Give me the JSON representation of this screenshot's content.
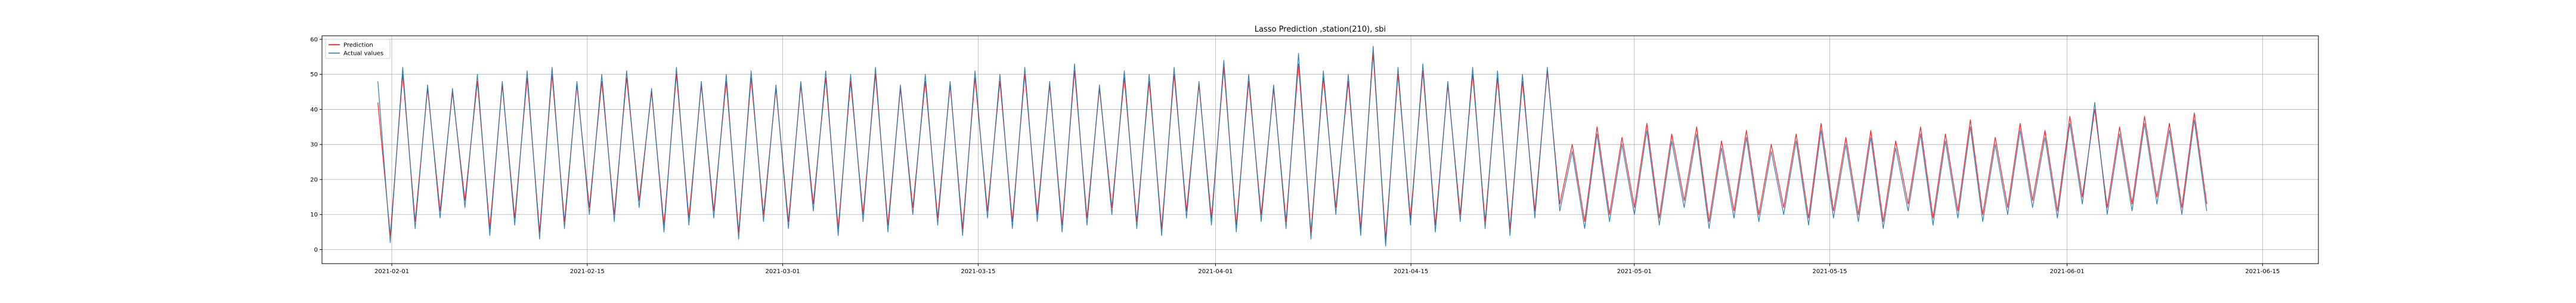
{
  "chart_data": {
    "type": "line",
    "title": "Lasso Prediction ,station(210), sbi",
    "xlabel": "",
    "ylabel": "",
    "xlim": [
      "2021-01-27",
      "2021-06-19"
    ],
    "ylim": [
      -4,
      61
    ],
    "x_ticks": [
      "2021-02-01",
      "2021-02-15",
      "2021-03-01",
      "2021-03-15",
      "2021-04-01",
      "2021-04-15",
      "2021-05-01",
      "2021-05-15",
      "2021-06-01",
      "2021-06-15"
    ],
    "y_ticks": [
      0,
      10,
      20,
      30,
      40,
      50,
      60
    ],
    "grid": true,
    "legend_position": "top-left",
    "x_start": "2021-01-31",
    "x_end": "2021-06-11",
    "series": [
      {
        "name": "Prediction",
        "color": "#ff0000",
        "values": [
          42,
          4,
          50,
          8,
          46,
          11,
          45,
          14,
          48,
          6,
          47,
          9,
          49,
          5,
          50,
          8,
          47,
          12,
          48,
          10,
          49,
          14,
          45,
          7,
          50,
          9,
          47,
          11,
          48,
          5,
          49,
          10,
          46,
          8,
          47,
          13,
          49,
          6,
          48,
          10,
          50,
          7,
          46,
          12,
          48,
          9,
          47,
          6,
          49,
          11,
          48,
          8,
          50,
          10,
          47,
          7,
          51,
          9,
          46,
          12,
          49,
          8,
          48,
          6,
          50,
          11,
          47,
          9,
          52,
          7,
          48,
          10,
          46,
          8,
          53,
          5,
          49,
          12,
          48,
          6,
          56,
          3,
          50,
          9,
          51,
          7,
          47,
          10,
          50,
          8,
          49,
          6,
          48,
          11,
          51,
          13,
          30,
          8,
          35,
          10,
          32,
          12,
          36,
          9,
          33,
          14,
          35,
          8,
          31,
          11,
          34,
          10,
          30,
          12,
          33,
          9,
          36,
          11,
          32,
          10,
          34,
          8,
          31,
          13,
          35,
          9,
          33,
          11,
          37,
          10,
          32,
          12,
          36,
          14,
          34,
          11,
          38,
          15,
          40,
          12,
          35,
          13,
          38,
          15,
          36,
          12,
          39,
          13
        ]
      },
      {
        "name": "Actual values",
        "color": "#1f77b4",
        "values": [
          48,
          2,
          52,
          6,
          47,
          9,
          46,
          12,
          50,
          4,
          48,
          7,
          51,
          3,
          52,
          6,
          48,
          10,
          50,
          8,
          51,
          12,
          46,
          5,
          52,
          7,
          48,
          9,
          50,
          3,
          51,
          8,
          47,
          6,
          48,
          11,
          51,
          4,
          50,
          8,
          52,
          5,
          47,
          10,
          50,
          7,
          48,
          4,
          51,
          9,
          50,
          6,
          52,
          8,
          48,
          5,
          53,
          7,
          47,
          10,
          51,
          6,
          50,
          4,
          52,
          9,
          48,
          7,
          54,
          5,
          50,
          8,
          47,
          6,
          56,
          3,
          51,
          10,
          50,
          4,
          58,
          1,
          52,
          7,
          53,
          5,
          48,
          8,
          52,
          6,
          51,
          4,
          50,
          9,
          52,
          11,
          28,
          6,
          33,
          8,
          30,
          10,
          34,
          7,
          31,
          12,
          33,
          6,
          29,
          9,
          32,
          8,
          28,
          10,
          31,
          7,
          34,
          9,
          30,
          8,
          32,
          6,
          29,
          11,
          33,
          7,
          31,
          9,
          35,
          8,
          30,
          10,
          34,
          12,
          32,
          9,
          36,
          13,
          42,
          10,
          33,
          11,
          36,
          13,
          34,
          10,
          37,
          11
        ]
      }
    ]
  }
}
